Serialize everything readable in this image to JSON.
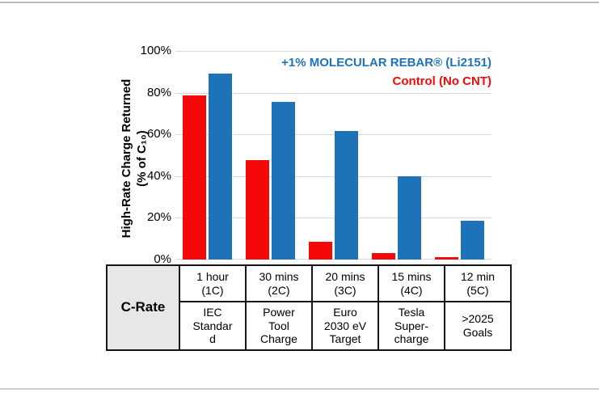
{
  "chart_data": {
    "type": "bar",
    "title": "",
    "categories": [
      "1 hour (1C)",
      "30 mins (2C)",
      "20 mins (3C)",
      "15 mins (4C)",
      "12 min (5C)"
    ],
    "series": [
      {
        "key": "control",
        "name": "Control (No CNT)",
        "color": "#f50808",
        "values": [
          78.5,
          47.5,
          8.5,
          3,
          1
        ]
      },
      {
        "key": "rebar",
        "name": "+1% MOLECULAR REBAR® (Li2151)",
        "color": "#1e73b8",
        "values": [
          89,
          75.5,
          61.5,
          40,
          18.5
        ]
      }
    ],
    "xlabel": "",
    "ylabel": "High-Rate Charge Returned\n(% of C₁₀)",
    "ylim": [
      0,
      100
    ],
    "yticks": [
      {
        "v": 0,
        "label": "0%"
      },
      {
        "v": 20,
        "label": "20%"
      },
      {
        "v": 40,
        "label": "40%"
      },
      {
        "v": 60,
        "label": "60%"
      },
      {
        "v": 80,
        "label": "80%"
      },
      {
        "v": 100,
        "label": "100%"
      }
    ],
    "grid": true,
    "gridline_color": "#d9d9d9",
    "legend_position": "top-right"
  },
  "table": {
    "header": "C-Rate",
    "columns": [
      {
        "time": "1 hour\n(1C)",
        "application": "IEC\nStandar\nd"
      },
      {
        "time": "30 mins\n(2C)",
        "application": "Power\nTool\nCharge"
      },
      {
        "time": "20 mins\n(3C)",
        "application": "Euro\n2030 eV\nTarget"
      },
      {
        "time": "15 mins\n(4C)",
        "application": "Tesla\nSuper-\ncharge"
      },
      {
        "time": "12 min\n(5C)",
        "application": ">2025\nGoals"
      }
    ]
  }
}
